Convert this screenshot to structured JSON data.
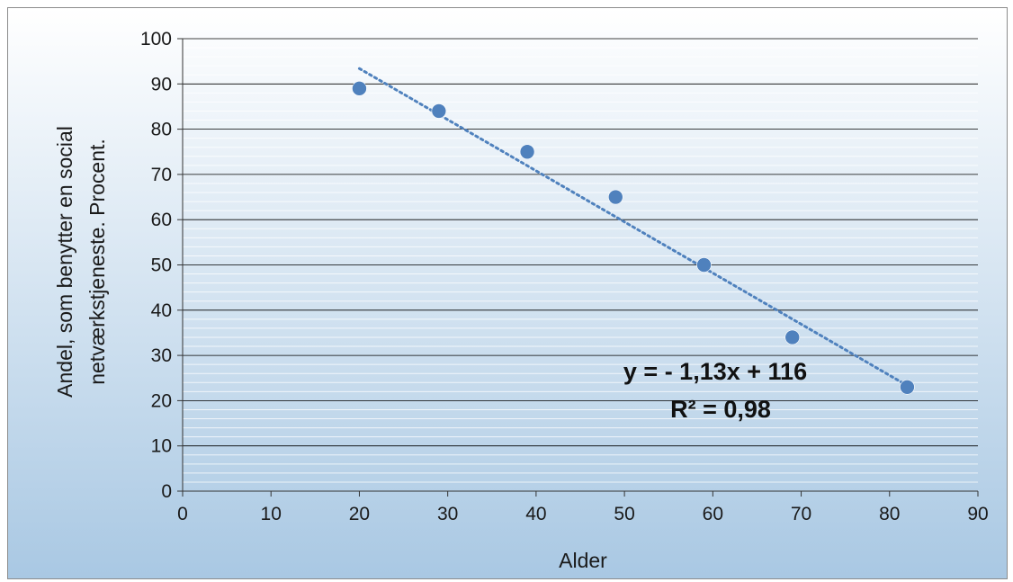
{
  "chart_data": {
    "type": "scatter",
    "title": "",
    "xlabel": "Alder",
    "ylabel_lines": [
      "Andel, som benytter en social",
      "netværkstjeneste. Procent."
    ],
    "xlim": [
      0,
      90
    ],
    "ylim": [
      0,
      100
    ],
    "x_ticks": [
      "0",
      "10",
      "20",
      "30",
      "40",
      "50",
      "60",
      "70",
      "80",
      "90"
    ],
    "y_ticks": [
      "0",
      "10",
      "20",
      "30",
      "40",
      "50",
      "60",
      "70",
      "80",
      "90",
      "100"
    ],
    "series": [
      {
        "x": [
          20,
          29,
          39,
          49,
          59,
          69,
          82
        ],
        "y": [
          89,
          84,
          75,
          65,
          50,
          34,
          23
        ],
        "marker_color": "#4f81bd"
      }
    ],
    "trendline": {
      "type": "linear",
      "x_range": [
        20,
        82
      ],
      "equation": "y = - 1,13x + 116",
      "r_squared": "R² = 0,98",
      "style": "dotted",
      "color": "#4f81bd"
    },
    "grid": true,
    "legend": "none"
  },
  "colors": {
    "background_top": "#ffffff",
    "background_bottom": "#a9c8e3",
    "gridline": "#000000",
    "minor_stripe": "#ffffff",
    "marker": "#4f81bd"
  }
}
